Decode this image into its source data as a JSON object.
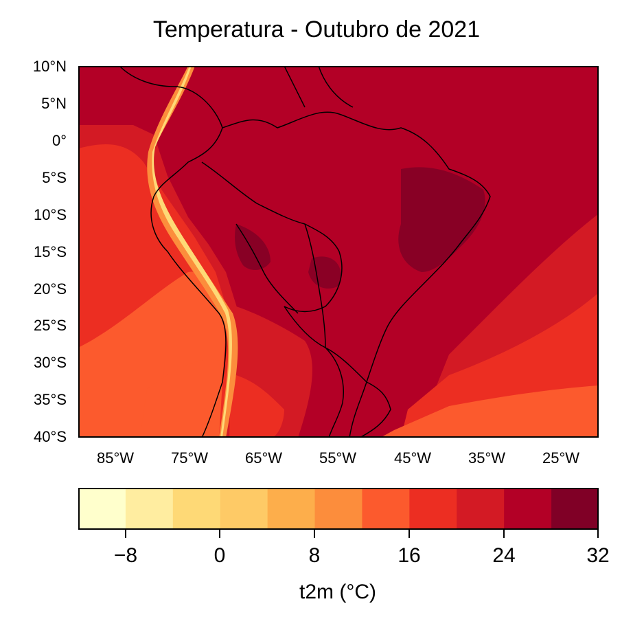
{
  "title": "Temperatura - Outubro de 2021",
  "lat_labels": [
    "10°N",
    "5°N",
    "0°",
    "5°S",
    "10°S",
    "15°S",
    "20°S",
    "25°S",
    "30°S",
    "35°S",
    "40°S"
  ],
  "lon_labels": [
    "85°W",
    "75°W",
    "65°W",
    "55°W",
    "45°W",
    "35°W",
    "25°W"
  ],
  "map": {
    "extent": {
      "lon_min": -90,
      "lon_max": -20,
      "lat_min": -40,
      "lat_max": 10
    },
    "variable": "t2m",
    "colormap": "YlOrRd",
    "borders_color": "#000000"
  },
  "colorbar": {
    "label": "t2m (°C)",
    "min": -12,
    "max": 32,
    "tick_labels": [
      "−8",
      "0",
      "8",
      "16",
      "24",
      "32"
    ],
    "tick_values": [
      -8,
      0,
      8,
      16,
      24,
      32
    ],
    "colors": [
      "#ffffcc",
      "#ffeda0",
      "#fed976",
      "#feca66",
      "#fdae4b",
      "#fc8d3c",
      "#fc5a2d",
      "#ec2e22",
      "#d31a24",
      "#b30026",
      "#800026"
    ]
  }
}
